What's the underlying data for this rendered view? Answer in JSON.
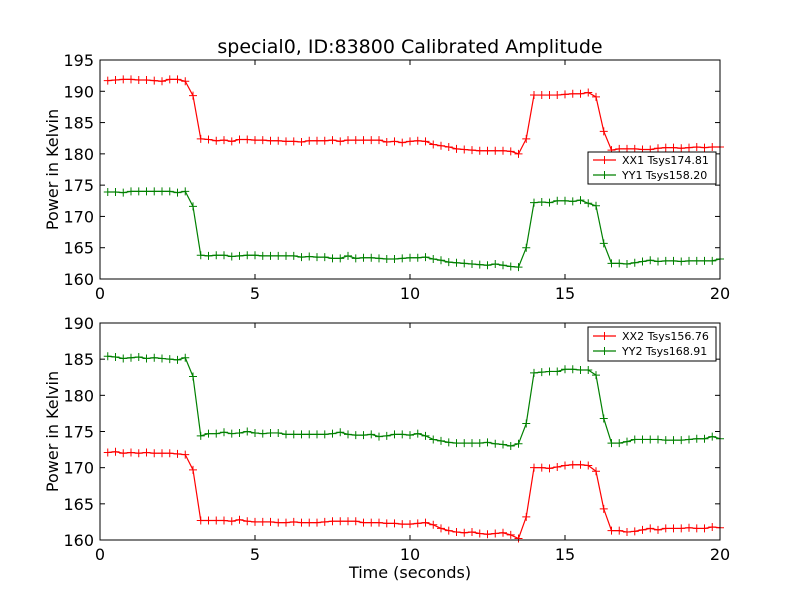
{
  "title": "special0, ID:83800 Calibrated Amplitude",
  "chart_data": [
    {
      "type": "line",
      "ylabel": "Power in Kelvin",
      "xlabel": "",
      "xlim": [
        0,
        20
      ],
      "ylim": [
        160,
        195
      ],
      "xticks": [
        0,
        5,
        10,
        15,
        20
      ],
      "yticks": [
        160,
        165,
        170,
        175,
        180,
        185,
        190,
        195
      ],
      "grid": false,
      "legend_position": "right",
      "series": [
        {
          "name": "XX1 Tsys174.81",
          "color": "#ff0000",
          "x": [
            0.25,
            0.5,
            0.75,
            1.0,
            1.25,
            1.5,
            1.75,
            2.0,
            2.25,
            2.5,
            2.75,
            3.0,
            3.25,
            3.5,
            3.75,
            4.0,
            4.25,
            4.5,
            4.75,
            5.0,
            5.25,
            5.5,
            5.75,
            6.0,
            6.25,
            6.5,
            6.75,
            7.0,
            7.25,
            7.5,
            7.75,
            8.0,
            8.25,
            8.5,
            8.75,
            9.0,
            9.25,
            9.5,
            9.75,
            10.0,
            10.25,
            10.5,
            10.75,
            11.0,
            11.25,
            11.5,
            11.75,
            12.0,
            12.25,
            12.5,
            12.75,
            13.0,
            13.25,
            13.5,
            13.75,
            14.0,
            14.25,
            14.5,
            14.75,
            15.0,
            15.25,
            15.5,
            15.75,
            16.0,
            16.25,
            16.5,
            16.75,
            17.0,
            17.25,
            17.5,
            17.75,
            18.0,
            18.25,
            18.5,
            18.75,
            19.0,
            19.25,
            19.5,
            19.75,
            20.0
          ],
          "y": [
            191.7,
            191.8,
            191.9,
            191.9,
            191.8,
            191.8,
            191.7,
            191.6,
            191.9,
            191.9,
            191.6,
            189.3,
            182.4,
            182.3,
            182.1,
            182.2,
            182.0,
            182.3,
            182.3,
            182.2,
            182.2,
            182.1,
            182.1,
            182.0,
            182.0,
            181.9,
            182.1,
            182.1,
            182.1,
            182.2,
            182.0,
            182.2,
            182.2,
            182.2,
            182.2,
            182.2,
            181.9,
            182.0,
            181.8,
            182.0,
            182.1,
            182.0,
            181.5,
            181.3,
            181.1,
            180.8,
            180.7,
            180.6,
            180.5,
            180.5,
            180.5,
            180.5,
            180.4,
            180.0,
            182.4,
            189.4,
            189.4,
            189.4,
            189.4,
            189.5,
            189.6,
            189.6,
            189.8,
            189.1,
            183.6,
            180.6,
            180.8,
            180.8,
            180.8,
            180.7,
            180.7,
            180.9,
            181.0,
            181.0,
            180.9,
            181.0,
            181.1,
            181.0,
            181.1,
            181.1
          ]
        },
        {
          "name": "YY1 Tsys158.20",
          "color": "#008000",
          "x": [
            0.25,
            0.5,
            0.75,
            1.0,
            1.25,
            1.5,
            1.75,
            2.0,
            2.25,
            2.5,
            2.75,
            3.0,
            3.25,
            3.5,
            3.75,
            4.0,
            4.25,
            4.5,
            4.75,
            5.0,
            5.25,
            5.5,
            5.75,
            6.0,
            6.25,
            6.5,
            6.75,
            7.0,
            7.25,
            7.5,
            7.75,
            8.0,
            8.25,
            8.5,
            8.75,
            9.0,
            9.25,
            9.5,
            9.75,
            10.0,
            10.25,
            10.5,
            10.75,
            11.0,
            11.25,
            11.5,
            11.75,
            12.0,
            12.25,
            12.5,
            12.75,
            13.0,
            13.25,
            13.5,
            13.75,
            14.0,
            14.25,
            14.5,
            14.75,
            15.0,
            15.25,
            15.5,
            15.75,
            16.0,
            16.25,
            16.5,
            16.75,
            17.0,
            17.25,
            17.5,
            17.75,
            18.0,
            18.25,
            18.5,
            18.75,
            19.0,
            19.25,
            19.5,
            19.75,
            20.0
          ],
          "y": [
            173.9,
            173.9,
            173.8,
            174.0,
            174.0,
            174.0,
            174.0,
            174.0,
            174.0,
            173.8,
            174.0,
            171.6,
            163.8,
            163.7,
            163.8,
            163.8,
            163.6,
            163.7,
            163.8,
            163.8,
            163.7,
            163.7,
            163.7,
            163.7,
            163.7,
            163.5,
            163.6,
            163.5,
            163.5,
            163.3,
            163.3,
            163.7,
            163.3,
            163.4,
            163.4,
            163.3,
            163.2,
            163.2,
            163.3,
            163.4,
            163.4,
            163.5,
            163.2,
            163.0,
            162.7,
            162.6,
            162.5,
            162.4,
            162.3,
            162.2,
            162.4,
            162.2,
            162.0,
            161.9,
            165.0,
            172.2,
            172.3,
            172.2,
            172.5,
            172.5,
            172.4,
            172.6,
            172.1,
            171.7,
            165.7,
            162.5,
            162.5,
            162.4,
            162.6,
            162.8,
            163.0,
            162.8,
            162.9,
            162.9,
            162.8,
            162.9,
            162.9,
            162.9,
            162.9,
            163.2
          ]
        }
      ]
    },
    {
      "type": "line",
      "ylabel": "Power in Kelvin",
      "xlabel": "Time (seconds)",
      "xlim": [
        0,
        20
      ],
      "ylim": [
        160,
        190
      ],
      "xticks": [
        0,
        5,
        10,
        15,
        20
      ],
      "yticks": [
        160,
        165,
        170,
        175,
        180,
        185,
        190
      ],
      "grid": false,
      "legend_position": "top-right",
      "series": [
        {
          "name": "XX2 Tsys156.76",
          "color": "#ff0000",
          "x": [
            0.25,
            0.5,
            0.75,
            1.0,
            1.25,
            1.5,
            1.75,
            2.0,
            2.25,
            2.5,
            2.75,
            3.0,
            3.25,
            3.5,
            3.75,
            4.0,
            4.25,
            4.5,
            4.75,
            5.0,
            5.25,
            5.5,
            5.75,
            6.0,
            6.25,
            6.5,
            6.75,
            7.0,
            7.25,
            7.5,
            7.75,
            8.0,
            8.25,
            8.5,
            8.75,
            9.0,
            9.25,
            9.5,
            9.75,
            10.0,
            10.25,
            10.5,
            10.75,
            11.0,
            11.25,
            11.5,
            11.75,
            12.0,
            12.25,
            12.5,
            12.75,
            13.0,
            13.25,
            13.5,
            13.75,
            14.0,
            14.25,
            14.5,
            14.75,
            15.0,
            15.25,
            15.5,
            15.75,
            16.0,
            16.25,
            16.5,
            16.75,
            17.0,
            17.25,
            17.5,
            17.75,
            18.0,
            18.25,
            18.5,
            18.75,
            19.0,
            19.25,
            19.5,
            19.75,
            20.0
          ],
          "y": [
            172.1,
            172.2,
            172.0,
            172.1,
            172.0,
            172.1,
            172.0,
            172.0,
            172.0,
            171.9,
            171.8,
            169.7,
            162.7,
            162.7,
            162.7,
            162.7,
            162.6,
            162.8,
            162.6,
            162.5,
            162.5,
            162.5,
            162.4,
            162.4,
            162.5,
            162.4,
            162.4,
            162.4,
            162.5,
            162.6,
            162.6,
            162.6,
            162.6,
            162.4,
            162.4,
            162.4,
            162.3,
            162.3,
            162.2,
            162.2,
            162.3,
            162.4,
            162.1,
            161.6,
            161.3,
            161.1,
            161.0,
            161.1,
            160.9,
            160.8,
            160.9,
            161.0,
            160.7,
            160.2,
            163.2,
            170.0,
            170.0,
            169.9,
            170.1,
            170.3,
            170.4,
            170.4,
            170.3,
            169.5,
            164.3,
            161.3,
            161.3,
            161.1,
            161.2,
            161.4,
            161.6,
            161.4,
            161.6,
            161.6,
            161.6,
            161.7,
            161.6,
            161.6,
            161.8,
            161.7
          ]
        },
        {
          "name": "YY2 Tsys168.91",
          "color": "#008000",
          "x": [
            0.25,
            0.5,
            0.75,
            1.0,
            1.25,
            1.5,
            1.75,
            2.0,
            2.25,
            2.5,
            2.75,
            3.0,
            3.25,
            3.5,
            3.75,
            4.0,
            4.25,
            4.5,
            4.75,
            5.0,
            5.25,
            5.5,
            5.75,
            6.0,
            6.25,
            6.5,
            6.75,
            7.0,
            7.25,
            7.5,
            7.75,
            8.0,
            8.25,
            8.5,
            8.75,
            9.0,
            9.25,
            9.5,
            9.75,
            10.0,
            10.25,
            10.5,
            10.75,
            11.0,
            11.25,
            11.5,
            11.75,
            12.0,
            12.25,
            12.5,
            12.75,
            13.0,
            13.25,
            13.5,
            13.75,
            14.0,
            14.25,
            14.5,
            14.75,
            15.0,
            15.25,
            15.5,
            15.75,
            16.0,
            16.25,
            16.5,
            16.75,
            17.0,
            17.25,
            17.5,
            17.75,
            18.0,
            18.25,
            18.5,
            18.75,
            19.0,
            19.25,
            19.5,
            19.75,
            20.0
          ],
          "y": [
            185.4,
            185.3,
            185.1,
            185.2,
            185.3,
            185.1,
            185.2,
            185.1,
            185.0,
            184.9,
            185.2,
            182.6,
            174.4,
            174.7,
            174.7,
            174.9,
            174.7,
            174.8,
            175.0,
            174.8,
            174.7,
            174.8,
            174.8,
            174.6,
            174.6,
            174.6,
            174.6,
            174.6,
            174.6,
            174.7,
            174.9,
            174.6,
            174.5,
            174.5,
            174.6,
            174.3,
            174.4,
            174.6,
            174.6,
            174.5,
            174.7,
            174.4,
            173.9,
            173.7,
            173.5,
            173.4,
            173.4,
            173.4,
            173.4,
            173.5,
            173.3,
            173.2,
            173.0,
            173.3,
            176.1,
            183.1,
            183.2,
            183.3,
            183.3,
            183.6,
            183.6,
            183.5,
            183.5,
            182.8,
            176.8,
            173.4,
            173.4,
            173.6,
            173.9,
            173.9,
            173.9,
            173.9,
            173.8,
            173.8,
            173.8,
            173.9,
            174.0,
            174.0,
            174.3,
            174.0
          ]
        }
      ]
    }
  ]
}
